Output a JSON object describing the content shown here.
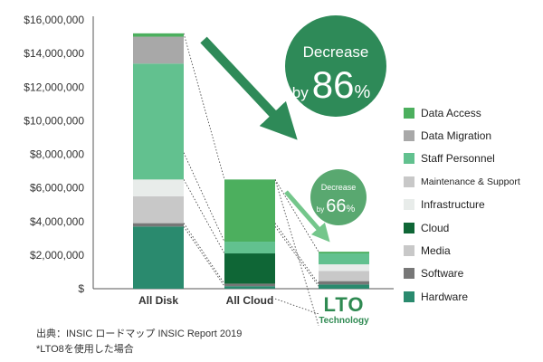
{
  "chart_data": {
    "type": "bar",
    "stacked": true,
    "categories": [
      "All Disk",
      "All Cloud",
      "LTO"
    ],
    "category_subtitle": {
      "LTO": "Technology"
    },
    "y_ticks": [
      "$",
      "$2,000,000",
      "$4,000,000",
      "$6,000,000",
      "$8,000,000",
      "$10,000,000",
      "$12,000,000",
      "$14,000,000",
      "$16,000,000"
    ],
    "ylim": [
      0,
      16000000
    ],
    "series": [
      {
        "name": "Hardware",
        "color": "#2a8a6e",
        "values": [
          3700000,
          150000,
          250000
        ]
      },
      {
        "name": "Software",
        "color": "#777777",
        "values": [
          200000,
          150000,
          200000
        ]
      },
      {
        "name": "Media",
        "color": "#c8c8c8",
        "values": [
          1600000,
          0,
          600000
        ]
      },
      {
        "name": "Cloud",
        "color": "#0f6636",
        "values": [
          0,
          1800000,
          0
        ]
      },
      {
        "name": "Infrastructure",
        "color": "#e8ecea",
        "values": [
          1000000,
          0,
          400000
        ]
      },
      {
        "name": "Maintenance & Support",
        "color": "#c8c8c8",
        "values": [
          0,
          0,
          0
        ]
      },
      {
        "name": "Staff Personnel",
        "color": "#62c18f",
        "values": [
          6900000,
          700000,
          650000
        ]
      },
      {
        "name": "Data Migration",
        "color": "#a8a8a8",
        "values": [
          1600000,
          0,
          0
        ]
      },
      {
        "name": "Data Access",
        "color": "#4caf5e",
        "values": [
          200000,
          3700000,
          100000
        ]
      }
    ],
    "legend_order": [
      "Data Access",
      "Data Migration",
      "Staff Personnel",
      "Maintenance & Support",
      "Infrastructure",
      "Cloud",
      "Media",
      "Software",
      "Hardware"
    ],
    "annotations": [
      {
        "line1": "Decrease",
        "line2_prefix": "by",
        "value": "86",
        "unit": "%"
      },
      {
        "line1": "Decrease",
        "line2_prefix": "by",
        "value": "66",
        "unit": "%"
      }
    ],
    "colors": {
      "accent": "#2f8a52",
      "badge_big": "#2e8a58",
      "badge_small": "#59a870",
      "arrow_big": "#2e8a58",
      "arrow_small": "#74c68b"
    }
  },
  "footnotes": {
    "line1": "出典：INSIC ロードマップ INSIC Report 2019",
    "line2": "*LTO8を使用した場合"
  }
}
